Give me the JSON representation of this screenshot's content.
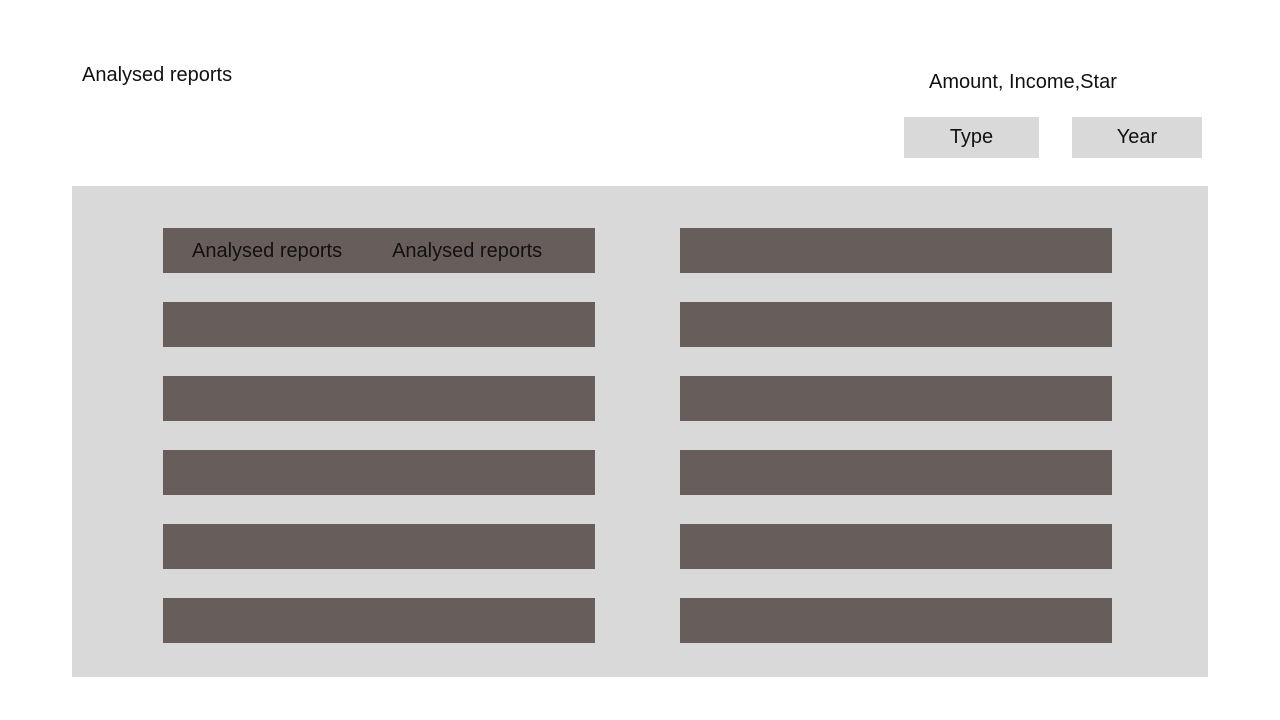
{
  "header": {
    "title": "Analysed reports"
  },
  "filters": {
    "caption": "Amount, Income,Star",
    "type_label": "Type",
    "year_label": "Year",
    "button_color": "#d9d9d9"
  },
  "panel": {
    "background": "#d9d9d9",
    "row_color": "#675e5c",
    "left_rows": [
      {
        "labels": [
          "Analysed reports",
          "Analysed reports"
        ]
      },
      {
        "labels": []
      },
      {
        "labels": []
      },
      {
        "labels": []
      },
      {
        "labels": []
      },
      {
        "labels": []
      }
    ],
    "right_rows": [
      {
        "labels": []
      },
      {
        "labels": []
      },
      {
        "labels": []
      },
      {
        "labels": []
      },
      {
        "labels": []
      },
      {
        "labels": []
      }
    ]
  }
}
